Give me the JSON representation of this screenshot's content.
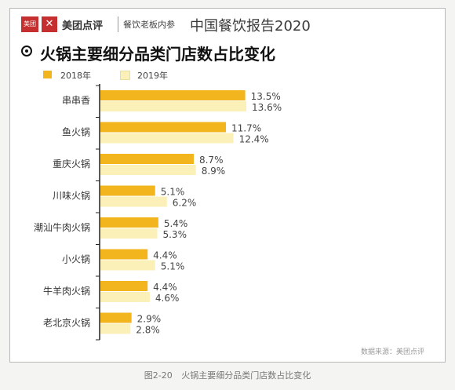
{
  "header": {
    "logo_text": "美团",
    "brand": "美团点评",
    "sub_brand": "餐饮老板内参",
    "report_title": "中国餐饮报告2020"
  },
  "source": "数据来源：美团点评",
  "caption": {
    "figure_no": "图2-20",
    "text": "火锅主要细分品类门店数占比变化"
  },
  "colors": {
    "y2018": "#f2b51d",
    "y2019": "#fbf0b8",
    "axis": "#222222",
    "brand": "#c62f2f"
  },
  "chart_data": {
    "type": "bar",
    "orientation": "horizontal",
    "title": "火锅主要细分品类门店数占比变化",
    "categories": [
      "串串香",
      "鱼火锅",
      "重庆火锅",
      "川味火锅",
      "潮汕牛肉火锅",
      "小火锅",
      "牛羊肉火锅",
      "老北京火锅"
    ],
    "series": [
      {
        "name": "2018年",
        "values": [
          13.5,
          11.7,
          8.7,
          5.1,
          5.4,
          4.4,
          4.4,
          2.9
        ],
        "labels": [
          "13.5%",
          "11.7%",
          "8.7%",
          "5.1%",
          "5.4%",
          "4.4%",
          "4.4%",
          "2.9%"
        ]
      },
      {
        "name": "2019年",
        "values": [
          13.6,
          12.4,
          8.9,
          6.2,
          5.3,
          5.1,
          4.6,
          2.8
        ],
        "labels": [
          "13.6%",
          "12.4%",
          "8.9%",
          "6.2%",
          "5.3%",
          "5.1%",
          "4.6%",
          "2.8%"
        ]
      }
    ],
    "legend_position": "top-left",
    "grid": false
  }
}
